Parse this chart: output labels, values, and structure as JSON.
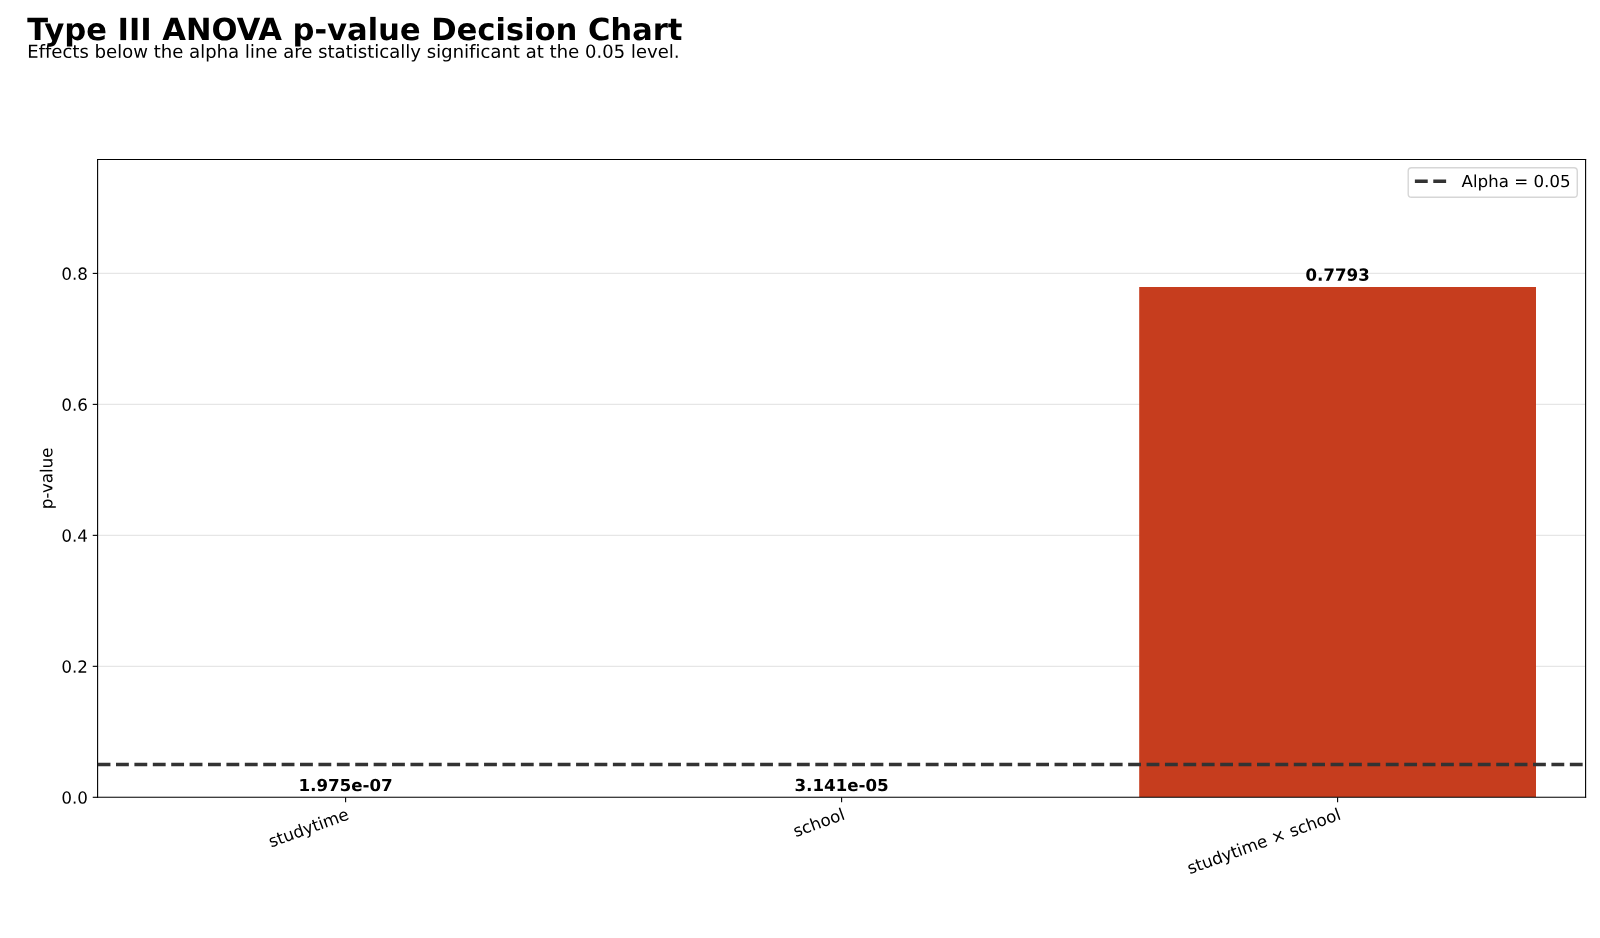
{
  "chart_data": {
    "type": "bar",
    "title": "Type III ANOVA p-value Decision Chart",
    "subtitle": "Effects below the alpha line are statistically significant at the 0.05 level.",
    "ylabel": "p-value",
    "categories": [
      "studytime",
      "school",
      "studytime × school"
    ],
    "values": [
      1.975e-07,
      3.141e-05,
      0.7793
    ],
    "value_labels": [
      "1.975e-07",
      "3.141e-05",
      "0.7793"
    ],
    "color": "#c63d1e",
    "ylim": [
      0,
      0.974
    ],
    "yticks": [
      {
        "value": 0,
        "label": "0.0"
      },
      0.2,
      0.4,
      0.6,
      0.8
    ],
    "grid": "y",
    "legend": "top right",
    "ref_lines": [
      {
        "axis": "y",
        "value": 0.05,
        "label": "Alpha = 0.05",
        "color": "#333333",
        "line_style": "dashed"
      }
    ]
  }
}
